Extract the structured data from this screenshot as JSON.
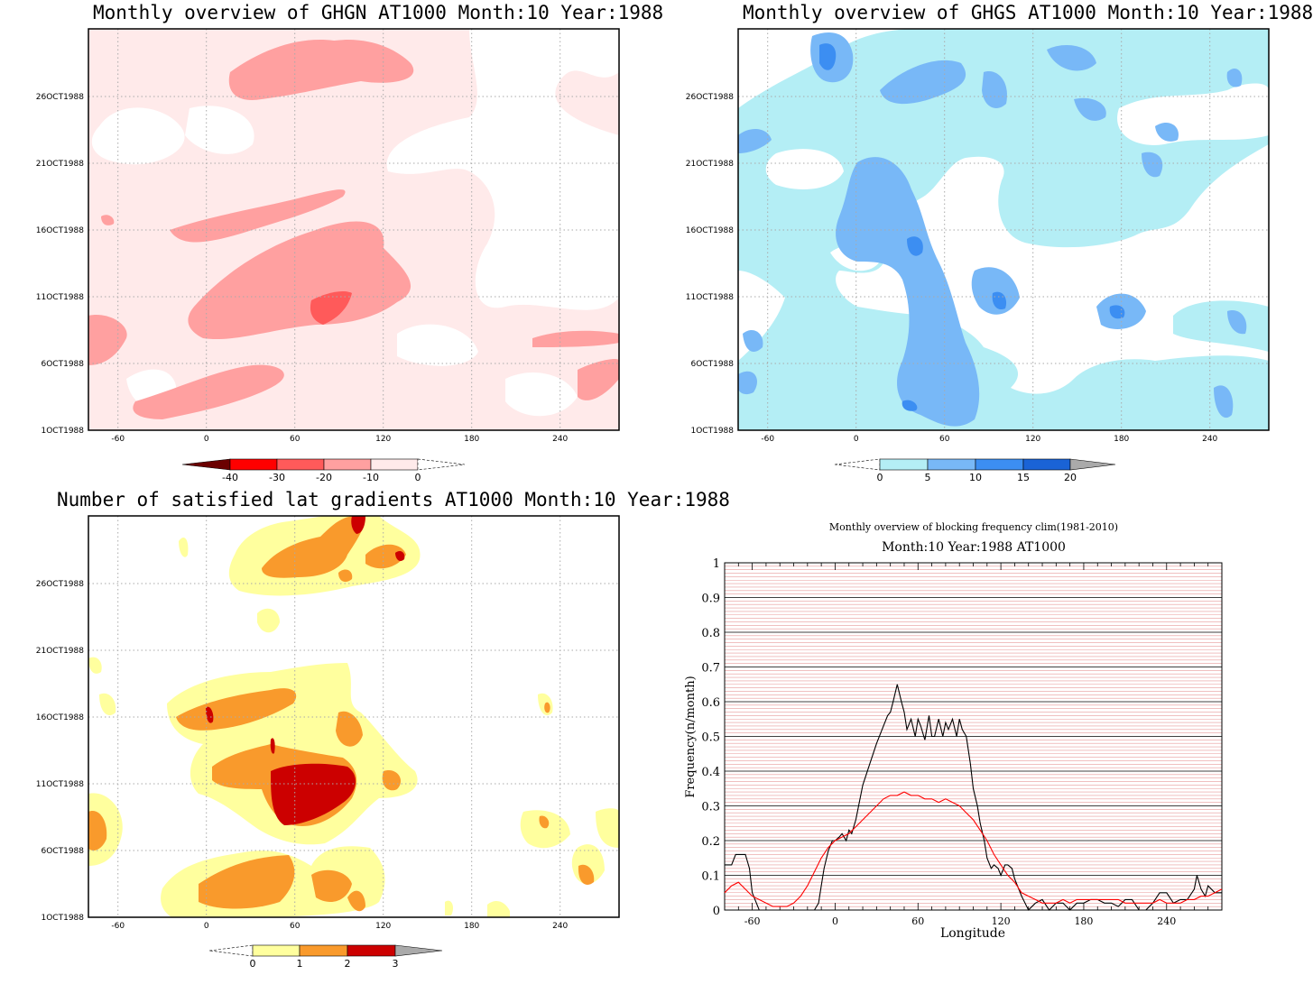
{
  "palette": {
    "ghgn": [
      "#6b0000",
      "#ff0000",
      "#ff5a5a",
      "#ffa0a0",
      "#ffeaea"
    ],
    "ghgs": [
      "#b4eef5",
      "#78b8f7",
      "#3c8ef2",
      "#1a63d6",
      "#aaaaaa"
    ],
    "lat": [
      "#ffff9e",
      "#f99a2c",
      "#cc0000",
      "#aaaaaa"
    ]
  },
  "panels": [
    {
      "id": "ghgn",
      "title": "Monthly overview of GHGN AT1000 Month:10 Year:1988",
      "x_ticks": [
        "-60",
        "0",
        "60",
        "120",
        "180",
        "240"
      ],
      "y_ticks": [
        "1OCT1988",
        "6OCT1988",
        "11OCT1988",
        "16OCT1988",
        "21OCT1988",
        "26OCT1988"
      ],
      "colorbar_labels": [
        "-40",
        "-30",
        "-20",
        "-10",
        "0"
      ]
    },
    {
      "id": "ghgs",
      "title": "Monthly overview of GHGS AT1000 Month:10 Year:1988",
      "x_ticks": [
        "-60",
        "0",
        "60",
        "120",
        "180",
        "240"
      ],
      "y_ticks": [
        "1OCT1988",
        "6OCT1988",
        "11OCT1988",
        "16OCT1988",
        "21OCT1988",
        "26OCT1988"
      ],
      "colorbar_labels": [
        "0",
        "5",
        "10",
        "15",
        "20"
      ]
    },
    {
      "id": "lat",
      "title": "Number of satisfied lat gradients AT1000 Month:10 Year:1988",
      "x_ticks": [
        "-60",
        "0",
        "60",
        "120",
        "180",
        "240"
      ],
      "y_ticks": [
        "1OCT1988",
        "6OCT1988",
        "11OCT1988",
        "16OCT1988",
        "21OCT1988",
        "26OCT1988"
      ],
      "colorbar_labels": [
        "0",
        "1",
        "2",
        "3"
      ]
    }
  ],
  "chart_data": {
    "type": "line",
    "title": "Monthly overview of blocking frequency clim(1981-2010)",
    "subtitle": "Month:10 Year:1988  AT1000",
    "xlabel": "Longitude",
    "ylabel": "Frequency(n/month)",
    "xlim": [
      -80,
      280
    ],
    "ylim": [
      0,
      1
    ],
    "x_ticks": [
      "-60",
      "0",
      "60",
      "120",
      "180",
      "240"
    ],
    "y_ticks": [
      "0",
      "0.1",
      "0.2",
      "0.3",
      "0.4",
      "0.5",
      "0.6",
      "0.7",
      "0.8",
      "0.9",
      "1"
    ],
    "grid": true,
    "series": [
      {
        "color": "#000000",
        "x": [
          -80,
          -75,
          -72,
          -68,
          -65,
          -62,
          -60,
          -55,
          -50,
          -45,
          -40,
          -35,
          -30,
          -25,
          -20,
          -15,
          -12,
          -10,
          -8,
          -5,
          -2,
          0,
          3,
          5,
          8,
          10,
          12,
          15,
          18,
          20,
          25,
          30,
          35,
          38,
          40,
          42,
          45,
          48,
          50,
          52,
          55,
          58,
          60,
          62,
          65,
          68,
          70,
          72,
          75,
          78,
          80,
          82,
          85,
          88,
          90,
          92,
          95,
          98,
          100,
          103,
          105,
          108,
          110,
          113,
          115,
          118,
          120,
          123,
          125,
          128,
          130,
          135,
          140,
          145,
          150,
          155,
          160,
          165,
          170,
          175,
          180,
          185,
          190,
          195,
          200,
          205,
          210,
          215,
          220,
          225,
          230,
          235,
          240,
          245,
          250,
          255,
          260,
          262,
          265,
          268,
          270,
          275,
          280
        ],
        "y": [
          0.13,
          0.13,
          0.16,
          0.16,
          0.16,
          0.12,
          0.05,
          0.0,
          0.0,
          0.0,
          0.0,
          0.0,
          0.0,
          0.0,
          0.0,
          0.0,
          0.02,
          0.07,
          0.12,
          0.17,
          0.2,
          0.2,
          0.21,
          0.22,
          0.2,
          0.23,
          0.22,
          0.26,
          0.32,
          0.36,
          0.42,
          0.48,
          0.53,
          0.56,
          0.57,
          0.6,
          0.65,
          0.6,
          0.57,
          0.52,
          0.55,
          0.5,
          0.55,
          0.53,
          0.49,
          0.56,
          0.5,
          0.5,
          0.55,
          0.5,
          0.54,
          0.52,
          0.55,
          0.5,
          0.55,
          0.52,
          0.5,
          0.42,
          0.35,
          0.3,
          0.25,
          0.2,
          0.15,
          0.12,
          0.13,
          0.12,
          0.1,
          0.13,
          0.13,
          0.12,
          0.09,
          0.04,
          0.0,
          0.02,
          0.03,
          0.0,
          0.02,
          0.02,
          0.0,
          0.02,
          0.02,
          0.03,
          0.03,
          0.02,
          0.02,
          0.01,
          0.03,
          0.03,
          0.0,
          0.0,
          0.02,
          0.05,
          0.05,
          0.02,
          0.03,
          0.03,
          0.06,
          0.1,
          0.06,
          0.04,
          0.07,
          0.05,
          0.05
        ]
      },
      {
        "color": "#ff0000",
        "x": [
          -80,
          -75,
          -70,
          -65,
          -60,
          -55,
          -50,
          -45,
          -40,
          -35,
          -30,
          -25,
          -20,
          -15,
          -10,
          -5,
          0,
          5,
          10,
          15,
          20,
          25,
          30,
          35,
          40,
          45,
          50,
          55,
          60,
          65,
          70,
          75,
          80,
          85,
          90,
          95,
          100,
          105,
          110,
          115,
          120,
          125,
          130,
          135,
          140,
          145,
          150,
          155,
          160,
          165,
          170,
          175,
          180,
          185,
          190,
          195,
          200,
          205,
          210,
          215,
          220,
          225,
          230,
          235,
          240,
          245,
          250,
          255,
          260,
          265,
          270,
          275,
          280
        ],
        "y": [
          0.05,
          0.07,
          0.08,
          0.06,
          0.04,
          0.03,
          0.02,
          0.01,
          0.01,
          0.01,
          0.02,
          0.04,
          0.07,
          0.11,
          0.15,
          0.18,
          0.2,
          0.21,
          0.22,
          0.24,
          0.26,
          0.28,
          0.3,
          0.32,
          0.33,
          0.33,
          0.34,
          0.33,
          0.33,
          0.32,
          0.32,
          0.31,
          0.32,
          0.31,
          0.3,
          0.28,
          0.26,
          0.23,
          0.2,
          0.16,
          0.13,
          0.1,
          0.08,
          0.05,
          0.04,
          0.03,
          0.02,
          0.02,
          0.02,
          0.03,
          0.02,
          0.03,
          0.03,
          0.03,
          0.03,
          0.03,
          0.03,
          0.03,
          0.02,
          0.02,
          0.02,
          0.02,
          0.02,
          0.03,
          0.02,
          0.02,
          0.02,
          0.03,
          0.03,
          0.04,
          0.04,
          0.05,
          0.06
        ]
      }
    ]
  }
}
